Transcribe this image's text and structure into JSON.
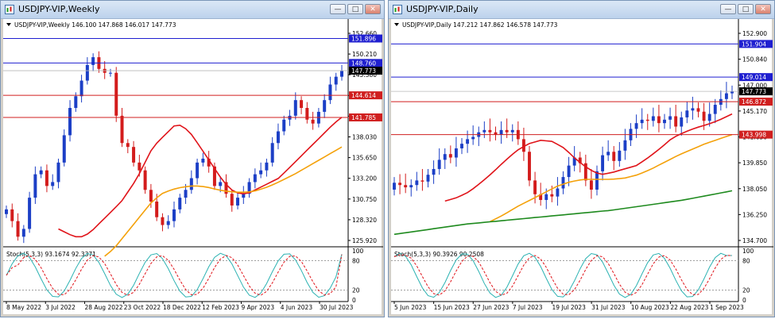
{
  "windows": [
    {
      "id": "weekly",
      "title": "USDJPY-VIP,Weekly",
      "info_label": "USDJPY-VIP,Weekly  146.100 147.868 146.017 147.773",
      "stoch_label": "Stoch(5,3,3) 93.1674 92.3371",
      "price_axis_labels": [
        "152.660",
        "150.210",
        "147.773",
        "145.380",
        "142.930",
        "140.485",
        "138.030",
        "135.650",
        "133.200",
        "130.750",
        "128.320",
        "125.920"
      ],
      "stoch_axis_labels": [
        "100",
        "80",
        "20",
        "0"
      ],
      "time_labels": [
        "8 May 2022",
        "3 Jul 2022",
        "28 Aug 2022",
        "23 Oct 2022",
        "18 Dec 2022",
        "12 Feb 2023",
        "9 Apr 2023",
        "4 Jun 2023",
        "30 Jul 2023"
      ],
      "hlines": [
        {
          "value": 151.896,
          "label": "151.896",
          "color": "#1f1fd0"
        },
        {
          "value": 148.76,
          "label": "148.760",
          "color": "#1f1fd0"
        },
        {
          "value": 144.614,
          "label": "144.614",
          "color": "#d01f1f"
        },
        {
          "value": 141.785,
          "label": "141.785",
          "color": "#d01f1f"
        }
      ],
      "current_price": {
        "value": 147.773,
        "label": "147.773"
      }
    },
    {
      "id": "daily",
      "title": "USDJPY-VIP,Daily",
      "info_label": "USDJPY-VIP,Daily  147.212 147.862 146.578 147.773",
      "stoch_label": "Stoch(5,3,3) 90.3926 90.2508",
      "price_axis_labels": [
        "152.900",
        "151.904",
        "150.840",
        "149.014",
        "147.773",
        "147.000",
        "146.872",
        "145.170",
        "143.998",
        "141.650",
        "139.850",
        "138.050",
        "136.250",
        "134.700"
      ],
      "stoch_axis_labels": [
        "100",
        "80",
        "20",
        "0"
      ],
      "time_labels": [
        "5 Jun 2023",
        "15 Jun 2023",
        "27 Jun 2023",
        "7 Jul 2023",
        "19 Jul 2023",
        "31 Jul 2023",
        "10 Aug 2023",
        "22 Aug 2023",
        "1 Sep 2023"
      ],
      "hlines": [
        {
          "value": 151.904,
          "label": "151.904",
          "color": "#1f1fd0"
        },
        {
          "value": 149.014,
          "label": "149.014",
          "color": "#1f1fd0"
        },
        {
          "value": 146.872,
          "label": "146.872",
          "color": "#d01f1f"
        },
        {
          "value": 143.998,
          "label": "143.998",
          "color": "#d01f1f"
        }
      ],
      "current_price": {
        "value": 147.773,
        "label": "147.773"
      }
    }
  ],
  "colors": {
    "bull": "#1c3fc6",
    "bear": "#d31c1c",
    "ma_red": "#e0141a",
    "ma_orange": "#f4a10a",
    "ma_green": "#1e8a1e",
    "stoch_main": "#2bb2b2",
    "stoch_signal": "#e0141a"
  },
  "chart_data": [
    {
      "type": "candlestick",
      "title": "USDJPY-VIP,Weekly",
      "ylim": [
        125.92,
        152.66
      ],
      "x": [
        "8 May 2022",
        "3 Jul 2022",
        "28 Aug 2022",
        "23 Oct 2022",
        "18 Dec 2022",
        "12 Feb 2023",
        "9 Apr 2023",
        "4 Jun 2023",
        "30 Jul 2023"
      ],
      "close_path": [
        130.0,
        128.5,
        126.5,
        127.5,
        131.5,
        134.5,
        135.0,
        133.0,
        133.5,
        136.0,
        139.5,
        143.0,
        144.5,
        146.5,
        148.5,
        149.5,
        148.0,
        147.5,
        147.5,
        142.0,
        138.5,
        138.0,
        136.0,
        135.0,
        132.5,
        131.0,
        129.0,
        128.0,
        128.5,
        130.0,
        131.5,
        132.5,
        134.0,
        136.0,
        136.5,
        135.5,
        133.0,
        133.5,
        132.0,
        130.5,
        131.5,
        132.0,
        133.5,
        134.5,
        135.0,
        136.0,
        138.5,
        140.0,
        141.5,
        142.0,
        144.0,
        143.0,
        141.5,
        141.0,
        142.5,
        144.0,
        146.0,
        147.0,
        147.773
      ],
      "overlays": [
        {
          "name": "MA red",
          "color": "#e0141a",
          "values": [
            127.5,
            127.0,
            126.5,
            126.5,
            127.0,
            128.0,
            129.0,
            130.0,
            131.0,
            132.5,
            134.0,
            136.0,
            138.0,
            139.0,
            140.0,
            141.0,
            140.5,
            139.5,
            138.0,
            136.5,
            135.0,
            133.5,
            132.5,
            132.0,
            132.0,
            132.5,
            133.0,
            133.5,
            134.0,
            135.0,
            136.0,
            137.0,
            138.0,
            139.0,
            140.0,
            141.0,
            141.8
          ]
        },
        {
          "name": "MA orange",
          "color": "#f4a10a",
          "values": [
            124.0,
            125.0,
            126.5,
            128.0,
            129.5,
            131.0,
            132.0,
            132.5,
            132.8,
            133.0,
            133.0,
            132.8,
            132.5,
            132.3,
            132.2,
            132.2,
            132.4,
            132.8,
            133.3,
            133.9,
            134.5,
            135.2,
            135.9,
            136.6,
            137.3,
            138.0
          ]
        }
      ],
      "hlines": [
        151.896,
        148.76,
        144.614,
        141.785
      ],
      "indicator": {
        "name": "Stoch(5,3,3)",
        "main": 93.1674,
        "signal": 92.3371,
        "levels": [
          20,
          80
        ],
        "ylim": [
          0,
          100
        ]
      }
    },
    {
      "type": "candlestick",
      "title": "USDJPY-VIP,Daily",
      "ylim": [
        134.7,
        152.9
      ],
      "x": [
        "5 Jun 2023",
        "15 Jun 2023",
        "27 Jun 2023",
        "7 Jul 2023",
        "19 Jul 2023",
        "31 Jul 2023",
        "10 Aug 2023",
        "22 Aug 2023",
        "1 Sep 2023"
      ],
      "close_path": [
        139.8,
        139.6,
        139.4,
        139.6,
        140.0,
        139.9,
        140.5,
        141.0,
        141.8,
        142.3,
        142.0,
        142.8,
        143.2,
        143.6,
        143.8,
        144.2,
        144.4,
        144.2,
        144.0,
        144.4,
        144.2,
        144.4,
        143.6,
        142.5,
        140.0,
        138.8,
        138.3,
        138.8,
        138.6,
        139.3,
        140.3,
        141.3,
        142.0,
        141.5,
        140.0,
        139.2,
        140.8,
        142.2,
        142.5,
        141.7,
        142.6,
        143.5,
        144.5,
        145.0,
        145.3,
        145.2,
        145.6,
        145.0,
        145.3,
        145.6,
        144.7,
        145.5,
        146.1,
        146.3,
        146.0,
        145.2,
        145.8,
        146.6,
        147.1,
        147.6,
        147.773
      ],
      "overlays": [
        {
          "name": "MA red",
          "color": "#e0141a",
          "values": [
            138.2,
            138.5,
            139.0,
            139.8,
            140.7,
            141.7,
            142.6,
            143.2,
            143.5,
            143.4,
            142.8,
            141.8,
            141.0,
            140.5,
            140.7,
            141.0,
            141.3,
            142.0,
            142.8,
            143.7,
            144.2,
            144.6,
            144.9,
            145.3,
            145.8
          ]
        },
        {
          "name": "MA orange",
          "color": "#f4a10a",
          "values": [
            136.4,
            137.0,
            137.7,
            138.3,
            138.9,
            139.5,
            139.9,
            140.1,
            140.1,
            140.1,
            140.2,
            140.5,
            141.0,
            141.6,
            142.2,
            142.7,
            143.2,
            143.6,
            144.0
          ]
        },
        {
          "name": "MA green",
          "color": "#1e8a1e",
          "values": [
            135.3,
            135.6,
            135.9,
            136.2,
            136.4,
            136.6,
            136.8,
            137.0,
            137.2,
            137.4,
            137.7,
            138.0,
            138.3,
            138.7,
            139.1
          ]
        }
      ],
      "hlines": [
        151.904,
        149.014,
        146.872,
        143.998
      ],
      "indicator": {
        "name": "Stoch(5,3,3)",
        "main": 90.3926,
        "signal": 90.2508,
        "levels": [
          20,
          80
        ],
        "ylim": [
          0,
          100
        ]
      }
    }
  ]
}
